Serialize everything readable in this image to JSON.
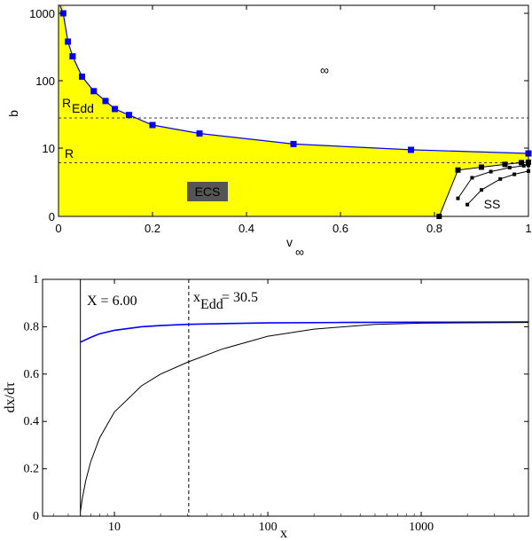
{
  "chart_data": [
    {
      "type": "area",
      "xlabel": "v",
      "xlabel_sub": "∞",
      "ylabel": "b",
      "xlim": [
        0,
        1
      ],
      "yscale": "log-with-zero",
      "x_ticks": [
        "0",
        "0.2",
        "0.4",
        "0.6",
        "0.8",
        "1"
      ],
      "x_tick_values": [
        0,
        0.2,
        0.4,
        0.6,
        0.8,
        1
      ],
      "y_ticks": [
        "0",
        "10",
        "100",
        "1000"
      ],
      "y_tick_values": [
        0,
        10,
        100,
        1000
      ],
      "colors": {
        "fill": "#ffff00",
        "boundary": "#0000ff",
        "ss": "#000000",
        "badge_bg": "#555555",
        "badge_text": "#ffff00"
      },
      "boundary_series": {
        "name": "boundary",
        "points": [
          [
            0.01,
            1000
          ],
          [
            0.02,
            380
          ],
          [
            0.03,
            230
          ],
          [
            0.05,
            115
          ],
          [
            0.075,
            70
          ],
          [
            0.1,
            50
          ],
          [
            0.12,
            38
          ],
          [
            0.15,
            31
          ],
          [
            0.2,
            22
          ],
          [
            0.3,
            16.5
          ],
          [
            0.5,
            11.5
          ],
          [
            0.75,
            9.5
          ],
          [
            1.0,
            8.5
          ]
        ]
      },
      "ss_curves": [
        {
          "name": "ss-1",
          "points": [
            [
              0.81,
              0
            ],
            [
              0.85,
              4.6
            ],
            [
              0.9,
              5.2
            ],
            [
              0.95,
              5.8
            ],
            [
              0.985,
              6.2
            ],
            [
              1.0,
              6.3
            ]
          ]
        },
        {
          "name": "ss-2",
          "points": [
            [
              0.85,
              0.7
            ],
            [
              0.88,
              3.2
            ],
            [
              0.92,
              4.3
            ],
            [
              0.96,
              5.1
            ],
            [
              0.99,
              5.5
            ],
            [
              1.0,
              5.6
            ]
          ]
        },
        {
          "name": "ss-3",
          "points": [
            [
              0.87,
              0.3
            ],
            [
              0.9,
              1.5
            ],
            [
              0.94,
              3.0
            ],
            [
              0.97,
              3.8
            ],
            [
              1.0,
              4.4
            ]
          ]
        }
      ],
      "reference_lines": [
        {
          "label": "R",
          "label_sub": "Edd",
          "y": 28
        },
        {
          "label": "R",
          "y": 6.2
        }
      ],
      "annotations": {
        "infinity": "∞",
        "ecs": "ECS",
        "ss": "SS"
      }
    },
    {
      "type": "line",
      "xlabel": "x",
      "ylabel": "dx/dτ",
      "xscale": "log",
      "xlim": [
        3.4,
        5000
      ],
      "ylim": [
        0,
        1
      ],
      "x_ticks": [
        "10",
        "100",
        "1000"
      ],
      "x_tick_values": [
        10,
        100,
        1000
      ],
      "y_ticks": [
        "0",
        "0.2",
        "0.4",
        "0.6",
        "0.8",
        "1"
      ],
      "y_tick_values": [
        0,
        0.2,
        0.4,
        0.6,
        0.8,
        1
      ],
      "colors": {
        "blue": "#0000ff",
        "black": "#000000"
      },
      "series": [
        {
          "name": "blue-curve",
          "color": "blue",
          "points": [
            [
              6.0,
              0.735
            ],
            [
              7,
              0.755
            ],
            [
              8,
              0.77
            ],
            [
              10,
              0.785
            ],
            [
              15,
              0.8
            ],
            [
              20,
              0.805
            ],
            [
              30,
              0.81
            ],
            [
              50,
              0.813
            ],
            [
              100,
              0.816
            ],
            [
              300,
              0.818
            ],
            [
              1000,
              0.819
            ],
            [
              5000,
              0.82
            ]
          ]
        },
        {
          "name": "black-curve",
          "color": "black",
          "points": [
            [
              6.0,
              0.02
            ],
            [
              6.2,
              0.08
            ],
            [
              6.5,
              0.15
            ],
            [
              7,
              0.23
            ],
            [
              8,
              0.33
            ],
            [
              10,
              0.44
            ],
            [
              15,
              0.55
            ],
            [
              20,
              0.6
            ],
            [
              30,
              0.65
            ],
            [
              50,
              0.705
            ],
            [
              100,
              0.76
            ],
            [
              200,
              0.79
            ],
            [
              500,
              0.81
            ],
            [
              1000,
              0.815
            ],
            [
              5000,
              0.818
            ]
          ]
        }
      ],
      "vertical_lines": [
        {
          "name": "x-star",
          "x": 6.0,
          "style": "solid"
        },
        {
          "name": "x-edd",
          "x": 30.5,
          "style": "dashed"
        }
      ],
      "annotations": {
        "x_star_label": "X = 6.00",
        "x_edd_label_main": "x",
        "x_edd_label_sub": "Edd",
        "x_edd_label_value": " = 30.5"
      }
    }
  ]
}
